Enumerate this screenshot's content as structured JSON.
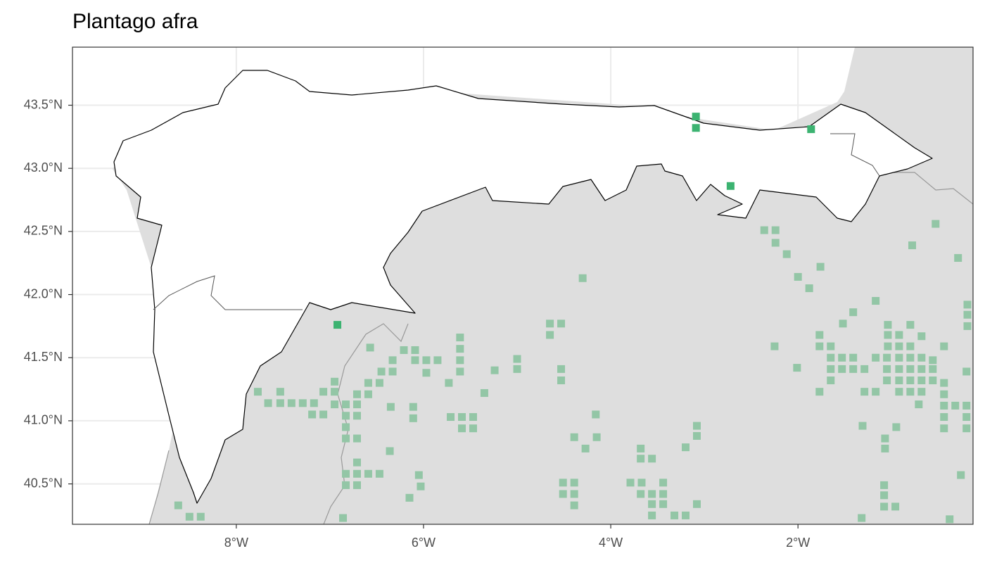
{
  "chart_data": {
    "type": "map",
    "title": "Plantago afra",
    "xlim": [
      -9.75,
      -0.13
    ],
    "ylim": [
      40.18,
      43.96
    ],
    "xticks": [
      {
        "value": -8,
        "label": "8°W"
      },
      {
        "value": -6,
        "label": "6°W"
      },
      {
        "value": -4,
        "label": "4°W"
      },
      {
        "value": -2,
        "label": "2°W"
      }
    ],
    "yticks": [
      {
        "value": 40.5,
        "label": "40.5°N"
      },
      {
        "value": 41,
        "label": "41.0°N"
      },
      {
        "value": 41.5,
        "label": "41.5°N"
      },
      {
        "value": 42,
        "label": "42.0°N"
      },
      {
        "value": 42.5,
        "label": "42.5°N"
      },
      {
        "value": 43,
        "label": "43.0°N"
      },
      {
        "value": 43.5,
        "label": "43.5°N"
      }
    ],
    "grid": true,
    "layers": [
      {
        "color": "#93c6a6",
        "lon": [
          -2.36,
          -2.24,
          -2.24,
          -2.12,
          -0.53,
          -0.78,
          -0.29,
          -1.76,
          -4.3,
          -2.0,
          -1.88,
          -1.17,
          -1.41,
          -0.19,
          -0.19,
          -0.19,
          -1.52,
          -1.04,
          -0.8,
          -4.65,
          -4.53,
          -4.65,
          -1.77,
          -1.04,
          -0.92,
          -0.68,
          -5.61,
          -5.61,
          -5.61,
          -2.25,
          -1.77,
          -1.65,
          -1.04,
          -0.92,
          -0.8,
          -0.44,
          -6.57,
          -6.21,
          -6.09,
          -6.33,
          -6.09,
          -5.97,
          -5.85,
          -5.61,
          -5.0,
          -5.0,
          -5.24,
          -4.53,
          -4.53,
          -1.65,
          -1.53,
          -1.41,
          -1.17,
          -1.05,
          -0.92,
          -0.8,
          -0.68,
          -0.56,
          -2.01,
          -1.65,
          -1.53,
          -1.41,
          -1.29,
          -1.05,
          -0.92,
          -0.8,
          -0.68,
          -0.56,
          -6.45,
          -6.33,
          -5.97,
          -1.65,
          -1.05,
          -0.92,
          -0.8,
          -0.68,
          -0.56,
          -0.44,
          -0.2,
          -6.95,
          -6.59,
          -6.47,
          -5.73,
          -1.77,
          -1.29,
          -1.17,
          -0.92,
          -0.8,
          -0.68,
          -0.44,
          -7.77,
          -7.53,
          -7.07,
          -6.95,
          -6.71,
          -6.59,
          -5.35,
          -7.66,
          -7.53,
          -7.41,
          -7.29,
          -7.17,
          -6.95,
          -6.83,
          -6.71,
          -6.35,
          -0.44,
          -0.32,
          -0.2,
          -0.71,
          -6.11,
          -7.19,
          -7.07,
          -6.83,
          -6.71,
          -5.71,
          -5.59,
          -5.47,
          -4.16,
          -0.44,
          -0.2,
          -6.11,
          -3.08,
          -1.31,
          -0.95,
          -5.59,
          -5.47,
          -6.83,
          -0.44,
          -0.2,
          -6.83,
          -6.71,
          -4.39,
          -4.15,
          -3.08,
          -1.07,
          -4.27,
          -3.2,
          -1.07,
          -3.68,
          -6.36,
          -6.71,
          -3.68,
          -3.56,
          -6.71,
          -6.83,
          -6.59,
          -6.47,
          -6.05,
          -0.26,
          -1.08,
          -3.79,
          -3.67,
          -3.44,
          -4.51,
          -4.39,
          -6.83,
          -6.71,
          -6.03,
          -4.51,
          -4.39,
          -3.68,
          -3.56,
          -3.44,
          -1.08,
          -6.15,
          -3.56,
          -3.44,
          -4.39,
          -3.08,
          -1.08,
          -0.96,
          -8.62,
          -8.5,
          -8.38,
          -6.86,
          -3.32,
          -3.2,
          -1.32,
          -0.38,
          -3.56
        ],
        "lat": [
          42.51,
          42.51,
          42.41,
          42.32,
          42.56,
          42.39,
          42.29,
          42.22,
          42.13,
          42.14,
          42.05,
          41.95,
          41.86,
          41.92,
          41.84,
          41.75,
          41.77,
          41.76,
          41.76,
          41.77,
          41.77,
          41.68,
          41.68,
          41.68,
          41.68,
          41.67,
          41.66,
          41.57,
          41.48,
          41.59,
          41.59,
          41.59,
          41.59,
          41.59,
          41.59,
          41.59,
          41.58,
          41.56,
          41.56,
          41.48,
          41.48,
          41.48,
          41.48,
          41.39,
          41.49,
          41.41,
          41.4,
          41.41,
          41.32,
          41.5,
          41.5,
          41.5,
          41.5,
          41.5,
          41.5,
          41.5,
          41.5,
          41.48,
          41.42,
          41.41,
          41.41,
          41.41,
          41.41,
          41.41,
          41.41,
          41.41,
          41.41,
          41.41,
          41.39,
          41.39,
          41.38,
          41.32,
          41.32,
          41.32,
          41.32,
          41.32,
          41.32,
          41.3,
          41.39,
          41.31,
          41.3,
          41.3,
          41.3,
          41.23,
          41.23,
          41.23,
          41.23,
          41.23,
          41.23,
          41.21,
          41.23,
          41.23,
          41.23,
          41.23,
          41.21,
          41.21,
          41.22,
          41.14,
          41.14,
          41.14,
          41.14,
          41.14,
          41.13,
          41.13,
          41.13,
          41.11,
          41.12,
          41.12,
          41.12,
          41.13,
          41.11,
          41.05,
          41.05,
          41.04,
          41.04,
          41.03,
          41.03,
          41.03,
          41.05,
          41.03,
          41.03,
          41.02,
          40.96,
          40.96,
          40.95,
          40.94,
          40.94,
          40.95,
          40.94,
          40.94,
          40.86,
          40.86,
          40.87,
          40.87,
          40.88,
          40.86,
          40.78,
          40.79,
          40.78,
          40.78,
          40.76,
          40.67,
          40.7,
          40.7,
          40.58,
          40.58,
          40.58,
          40.58,
          40.57,
          40.57,
          40.49,
          40.51,
          40.51,
          40.51,
          40.51,
          40.51,
          40.49,
          40.49,
          40.48,
          40.42,
          40.42,
          40.42,
          40.42,
          40.42,
          40.41,
          40.39,
          40.34,
          40.34,
          40.33,
          40.34,
          40.32,
          40.32,
          40.33,
          40.24,
          40.24,
          40.23,
          40.25,
          40.25,
          40.23,
          40.22,
          40.25
        ]
      },
      {
        "color": "#3cb371",
        "lon": [
          -3.09,
          -3.09,
          -1.86,
          -2.72,
          -6.92
        ],
        "lat": [
          43.41,
          43.32,
          43.31,
          42.86,
          41.76
        ]
      }
    ]
  }
}
